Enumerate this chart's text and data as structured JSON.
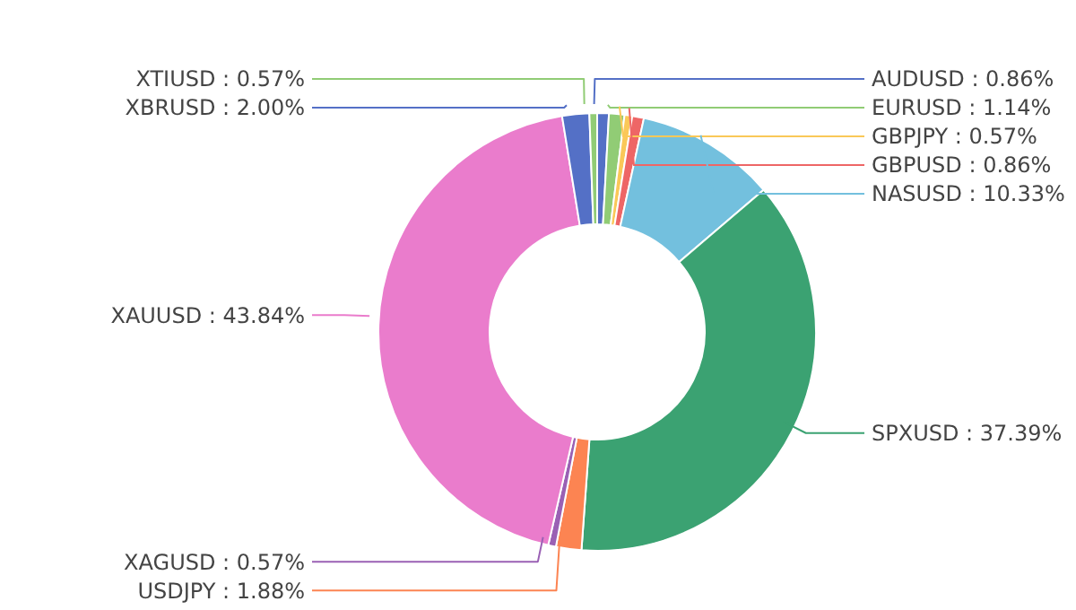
{
  "chart_data": {
    "type": "donut",
    "categories": [
      "AUDUSD",
      "EURUSD",
      "GBPJPY",
      "GBPUSD",
      "NASUSD",
      "SPXUSD",
      "USDJPY",
      "XAGUSD",
      "XAUUSD",
      "XBRUSD",
      "XTIUSD"
    ],
    "values": [
      0.86,
      1.14,
      0.57,
      0.86,
      10.33,
      37.39,
      1.88,
      0.57,
      43.84,
      2.0,
      0.57
    ],
    "value_labels": [
      "0.86%",
      "1.14%",
      "0.57%",
      "0.86%",
      "10.33%",
      "37.39%",
      "1.88%",
      "0.57%",
      "43.84%",
      "2.00%",
      "0.57%"
    ],
    "colors": [
      "#5470c6",
      "#91cc75",
      "#fac858",
      "#ee6666",
      "#73c0de",
      "#3ba272",
      "#fc8452",
      "#9a60b4",
      "#ea7ccc",
      "#5470c6",
      "#91cc75"
    ],
    "legend": false
  }
}
